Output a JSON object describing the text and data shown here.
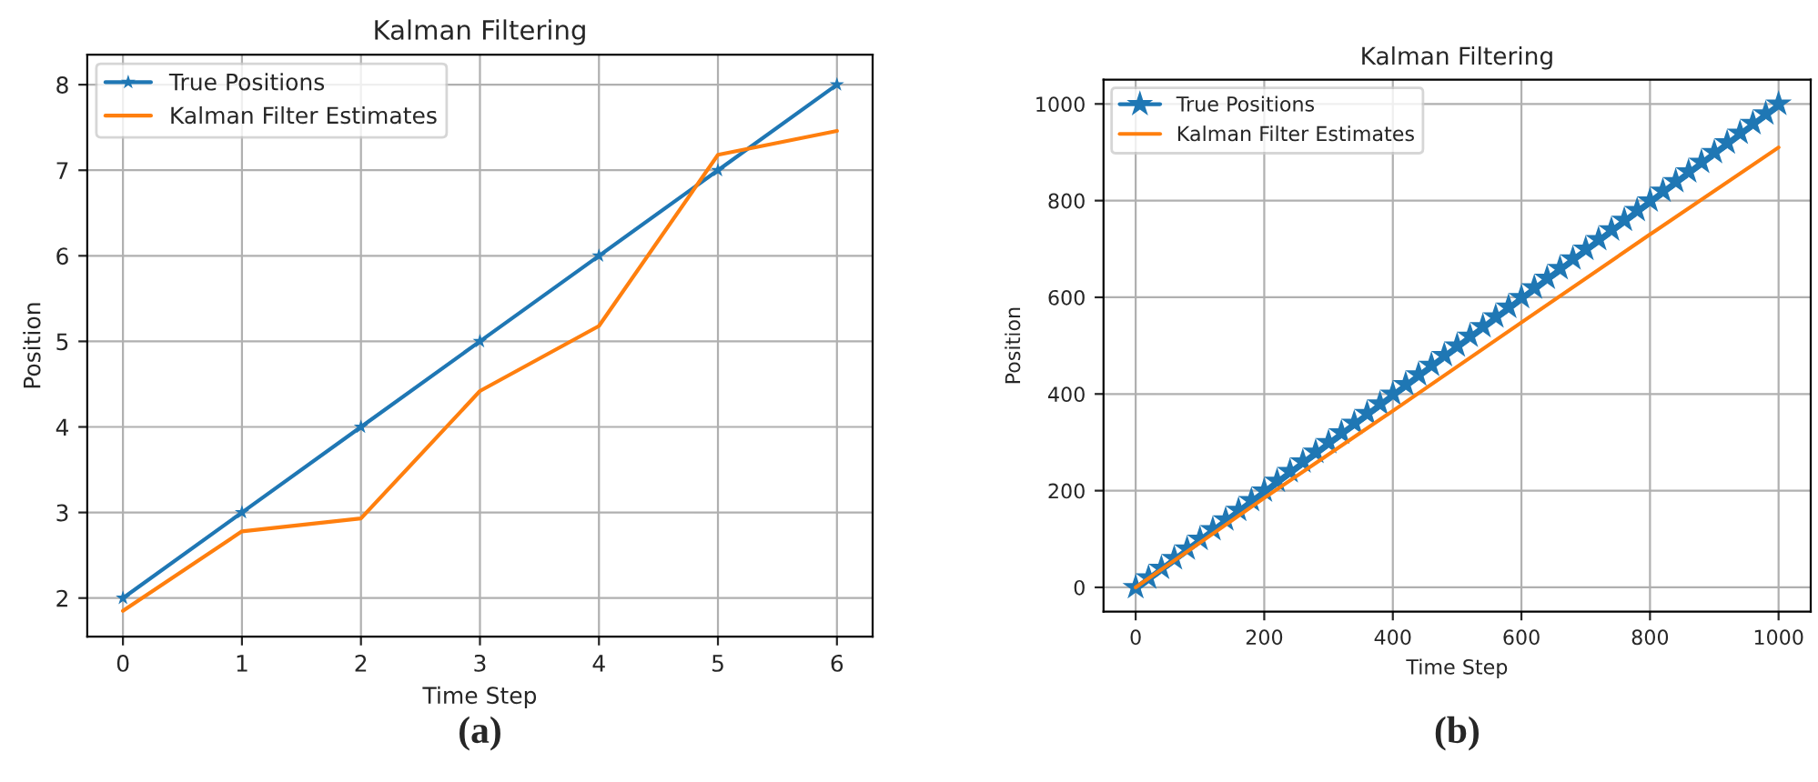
{
  "chart_data": [
    {
      "type": "line",
      "title": "Kalman Filtering",
      "xlabel": "Time Step",
      "ylabel": "Position",
      "series": [
        {
          "name": "True Positions",
          "color": "#1f77b4",
          "marker": "star",
          "x": [
            0,
            1,
            2,
            3,
            4,
            5,
            6
          ],
          "values": [
            2,
            3,
            4,
            5,
            6,
            7,
            8
          ]
        },
        {
          "name": "Kalman Filter Estimates",
          "color": "#ff7f0e",
          "marker": "none",
          "x": [
            0,
            1,
            2,
            3,
            4,
            5,
            6
          ],
          "values": [
            1.85,
            2.78,
            2.93,
            4.42,
            5.18,
            7.18,
            7.46
          ]
        }
      ],
      "xlim": [
        -0.3,
        6.3
      ],
      "ylim": [
        1.55,
        8.35
      ],
      "xticks": [
        0,
        1,
        2,
        3,
        4,
        5,
        6
      ],
      "yticks": [
        2,
        3,
        4,
        5,
        6,
        7,
        8
      ],
      "grid": true,
      "legend": "top left",
      "annotations": [
        "(a)"
      ]
    },
    {
      "type": "line",
      "title": "Kalman Filtering",
      "xlabel": "Time Step",
      "ylabel": "Position",
      "series": [
        {
          "name": "True Positions",
          "color": "#1f77b4",
          "marker": "star",
          "x": [
            0,
            20,
            40,
            60,
            80,
            100,
            120,
            140,
            160,
            180,
            200,
            220,
            240,
            260,
            280,
            300,
            320,
            340,
            360,
            380,
            400,
            420,
            440,
            460,
            480,
            500,
            520,
            540,
            560,
            580,
            600,
            620,
            640,
            660,
            680,
            700,
            720,
            740,
            760,
            780,
            800,
            820,
            840,
            860,
            880,
            900,
            920,
            940,
            960,
            980,
            1000
          ],
          "values": [
            0,
            20,
            40,
            60,
            80,
            100,
            120,
            140,
            160,
            180,
            200,
            220,
            240,
            260,
            280,
            300,
            320,
            340,
            360,
            380,
            400,
            420,
            440,
            460,
            480,
            500,
            520,
            540,
            560,
            580,
            600,
            620,
            640,
            660,
            680,
            700,
            720,
            740,
            760,
            780,
            800,
            820,
            840,
            860,
            880,
            900,
            920,
            940,
            960,
            980,
            1000
          ]
        },
        {
          "name": "Kalman Filter Estimates",
          "color": "#ff7f0e",
          "marker": "none",
          "x": [
            0,
            200,
            400,
            600,
            800,
            1000
          ],
          "values": [
            0,
            185,
            365,
            548,
            730,
            910
          ]
        }
      ],
      "xlim": [
        -50,
        1050
      ],
      "ylim": [
        -50,
        1050
      ],
      "xticks": [
        0,
        200,
        400,
        600,
        800,
        1000
      ],
      "yticks": [
        0,
        200,
        400,
        600,
        800,
        1000
      ],
      "grid": true,
      "legend": "top left",
      "annotations": [
        "(b)"
      ]
    }
  ]
}
